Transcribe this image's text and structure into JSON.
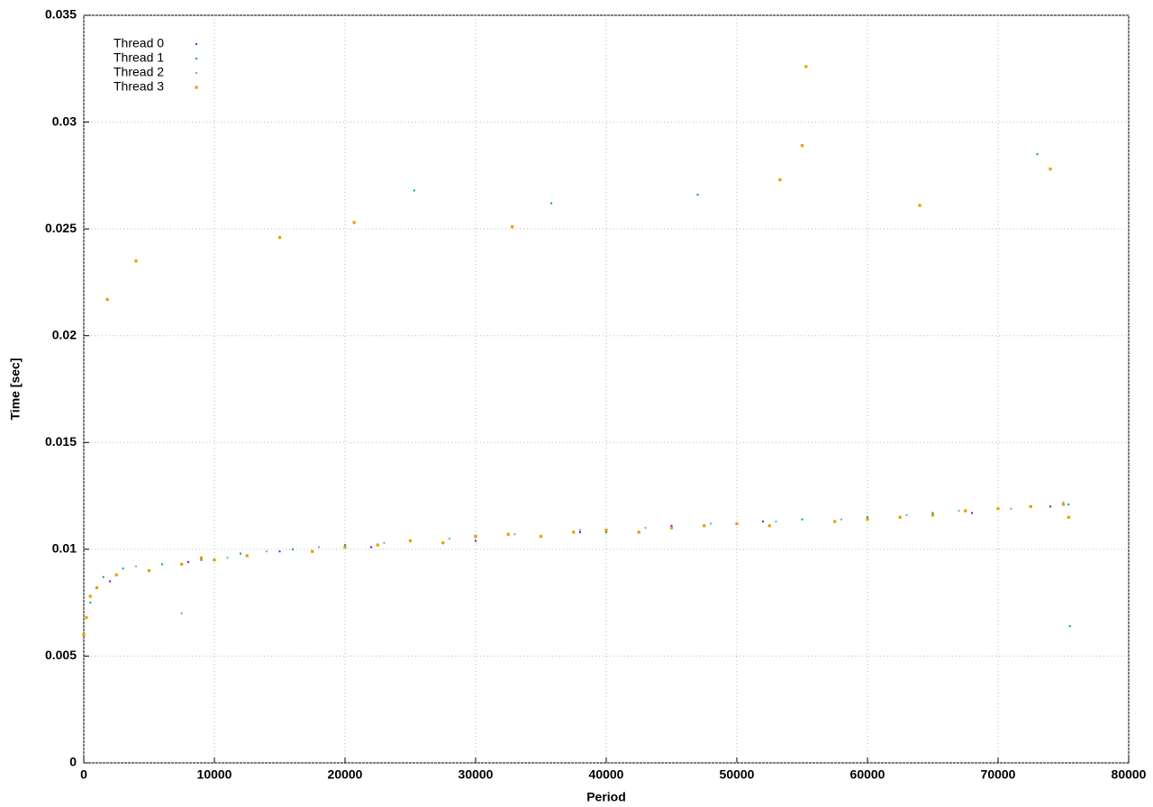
{
  "chart_data": {
    "type": "scatter",
    "x_label": "Period",
    "y_label": "Time [sec]",
    "xlim": [
      0,
      80000
    ],
    "xticks": [
      0,
      10000,
      20000,
      30000,
      40000,
      50000,
      60000,
      70000,
      80000
    ],
    "ylim": [
      0,
      0.035
    ],
    "yticks": [
      0,
      0.005,
      0.01,
      0.015,
      0.02,
      0.025,
      0.03,
      0.035
    ],
    "grid": true,
    "legend": "top-left",
    "series": [
      {
        "name": "Thread 0",
        "color": "#9400d3",
        "x": [
          2000,
          8000,
          15000,
          22000,
          30000,
          38000,
          45000,
          52000,
          60000,
          68000,
          74000
        ],
        "values": [
          0.0085,
          0.0094,
          0.0099,
          0.0101,
          0.0104,
          0.0108,
          0.0111,
          0.0113,
          0.0115,
          0.0117,
          0.012
        ]
      },
      {
        "name": "Thread 1",
        "color": "#009e73",
        "x": [
          500,
          1500,
          3000,
          6000,
          9000,
          12000,
          16000,
          20000,
          25000,
          25300,
          30000,
          35800,
          40000,
          45000,
          47000,
          50000,
          55000,
          60000,
          65000,
          70000,
          73000,
          75400,
          75500
        ],
        "values": [
          0.0075,
          0.0087,
          0.0091,
          0.0093,
          0.0095,
          0.0098,
          0.01,
          0.0102,
          0.0104,
          0.0268,
          0.0106,
          0.0262,
          0.0108,
          0.011,
          0.0266,
          0.0112,
          0.0114,
          0.0115,
          0.0117,
          0.0119,
          0.0285,
          0.0121,
          0.0064
        ]
      },
      {
        "name": "Thread 2",
        "color": "#56b4e9",
        "x": [
          1000,
          4000,
          7500,
          11000,
          14000,
          18000,
          23000,
          28000,
          33000,
          38000,
          43000,
          48000,
          53000,
          58000,
          63000,
          67000,
          71000,
          75000
        ],
        "values": [
          0.0082,
          0.0092,
          0.007,
          0.0096,
          0.0099,
          0.0101,
          0.0103,
          0.0105,
          0.0107,
          0.0109,
          0.011,
          0.0112,
          0.0113,
          0.0114,
          0.0116,
          0.0118,
          0.0119,
          0.0122
        ]
      },
      {
        "name": "Thread 3",
        "color": "#e69f00",
        "x": [
          0,
          200,
          500,
          1000,
          1800,
          2500,
          4000,
          5000,
          7500,
          9000,
          10000,
          12500,
          15000,
          17500,
          20000,
          20700,
          22500,
          25000,
          27500,
          30000,
          32500,
          32800,
          35000,
          37500,
          40000,
          42500,
          45000,
          47500,
          50000,
          52500,
          53300,
          55000,
          55300,
          57500,
          60000,
          62500,
          64000,
          65000,
          67500,
          70000,
          72500,
          74000,
          75000,
          75400
        ],
        "values": [
          0.006,
          0.0068,
          0.0078,
          0.0082,
          0.0217,
          0.0088,
          0.0235,
          0.009,
          0.0093,
          0.0096,
          0.0095,
          0.0097,
          0.0246,
          0.0099,
          0.0101,
          0.0253,
          0.0102,
          0.0104,
          0.0103,
          0.0106,
          0.0107,
          0.0251,
          0.0106,
          0.0108,
          0.0109,
          0.0108,
          0.011,
          0.0111,
          0.0112,
          0.0111,
          0.0273,
          0.0289,
          0.0326,
          0.0113,
          0.0114,
          0.0115,
          0.0261,
          0.0116,
          0.0118,
          0.0119,
          0.012,
          0.0278,
          0.0121,
          0.0115
        ]
      }
    ]
  }
}
